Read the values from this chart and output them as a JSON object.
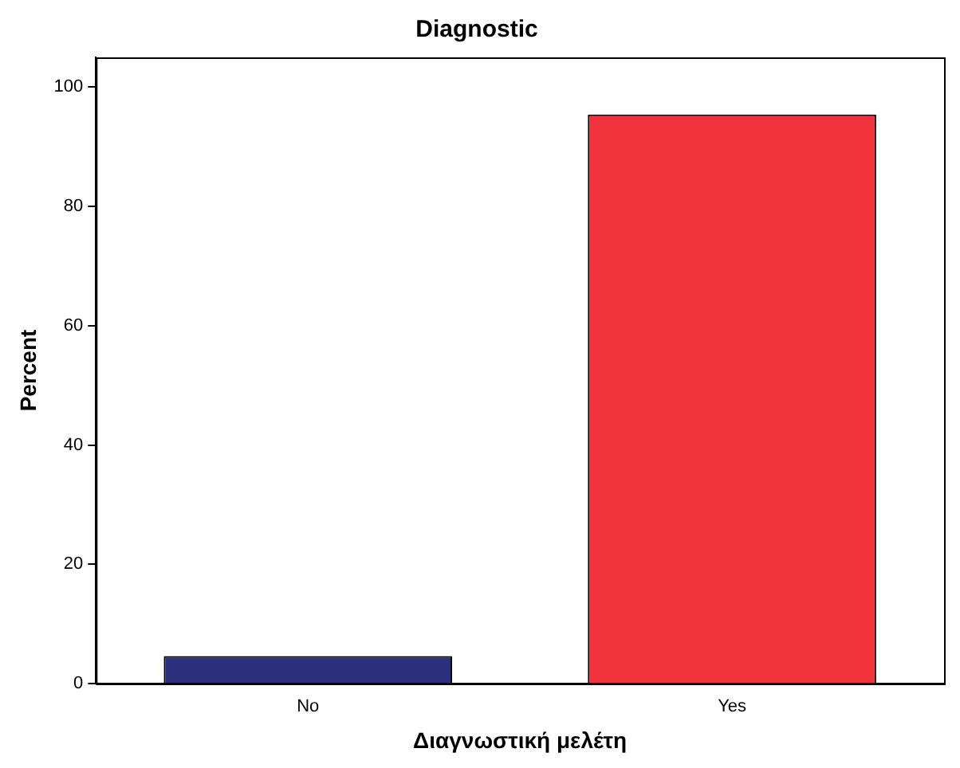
{
  "chart_data": {
    "type": "bar",
    "title": "Diagnostic",
    "xlabel": "Διαγνωστική μελέτη",
    "ylabel": "Percent",
    "categories": [
      "No",
      "Yes"
    ],
    "values": [
      4.6,
      95.4
    ],
    "colors": [
      "#2b2f7c",
      "#f0323c"
    ],
    "ylim": [
      0,
      105
    ],
    "yticks": [
      0,
      20,
      40,
      60,
      80,
      100
    ],
    "grid": false,
    "legend": false
  }
}
